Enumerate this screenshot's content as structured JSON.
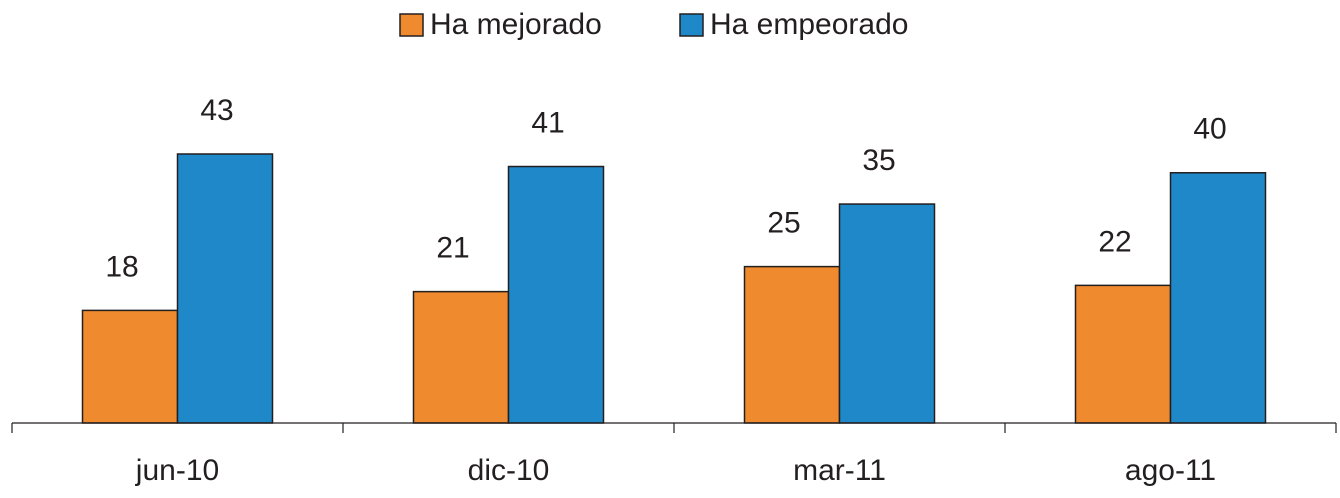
{
  "chart_data": {
    "type": "bar",
    "categories": [
      "jun-10",
      "dic-10",
      "mar-11",
      "ago-11"
    ],
    "series": [
      {
        "name": "Ha mejorado",
        "color": "#f08a2f",
        "values": [
          18,
          21,
          25,
          22
        ]
      },
      {
        "name": "Ha empeorado",
        "color": "#1e88c8",
        "values": [
          43,
          41,
          35,
          40
        ]
      }
    ],
    "legend": "top"
  }
}
